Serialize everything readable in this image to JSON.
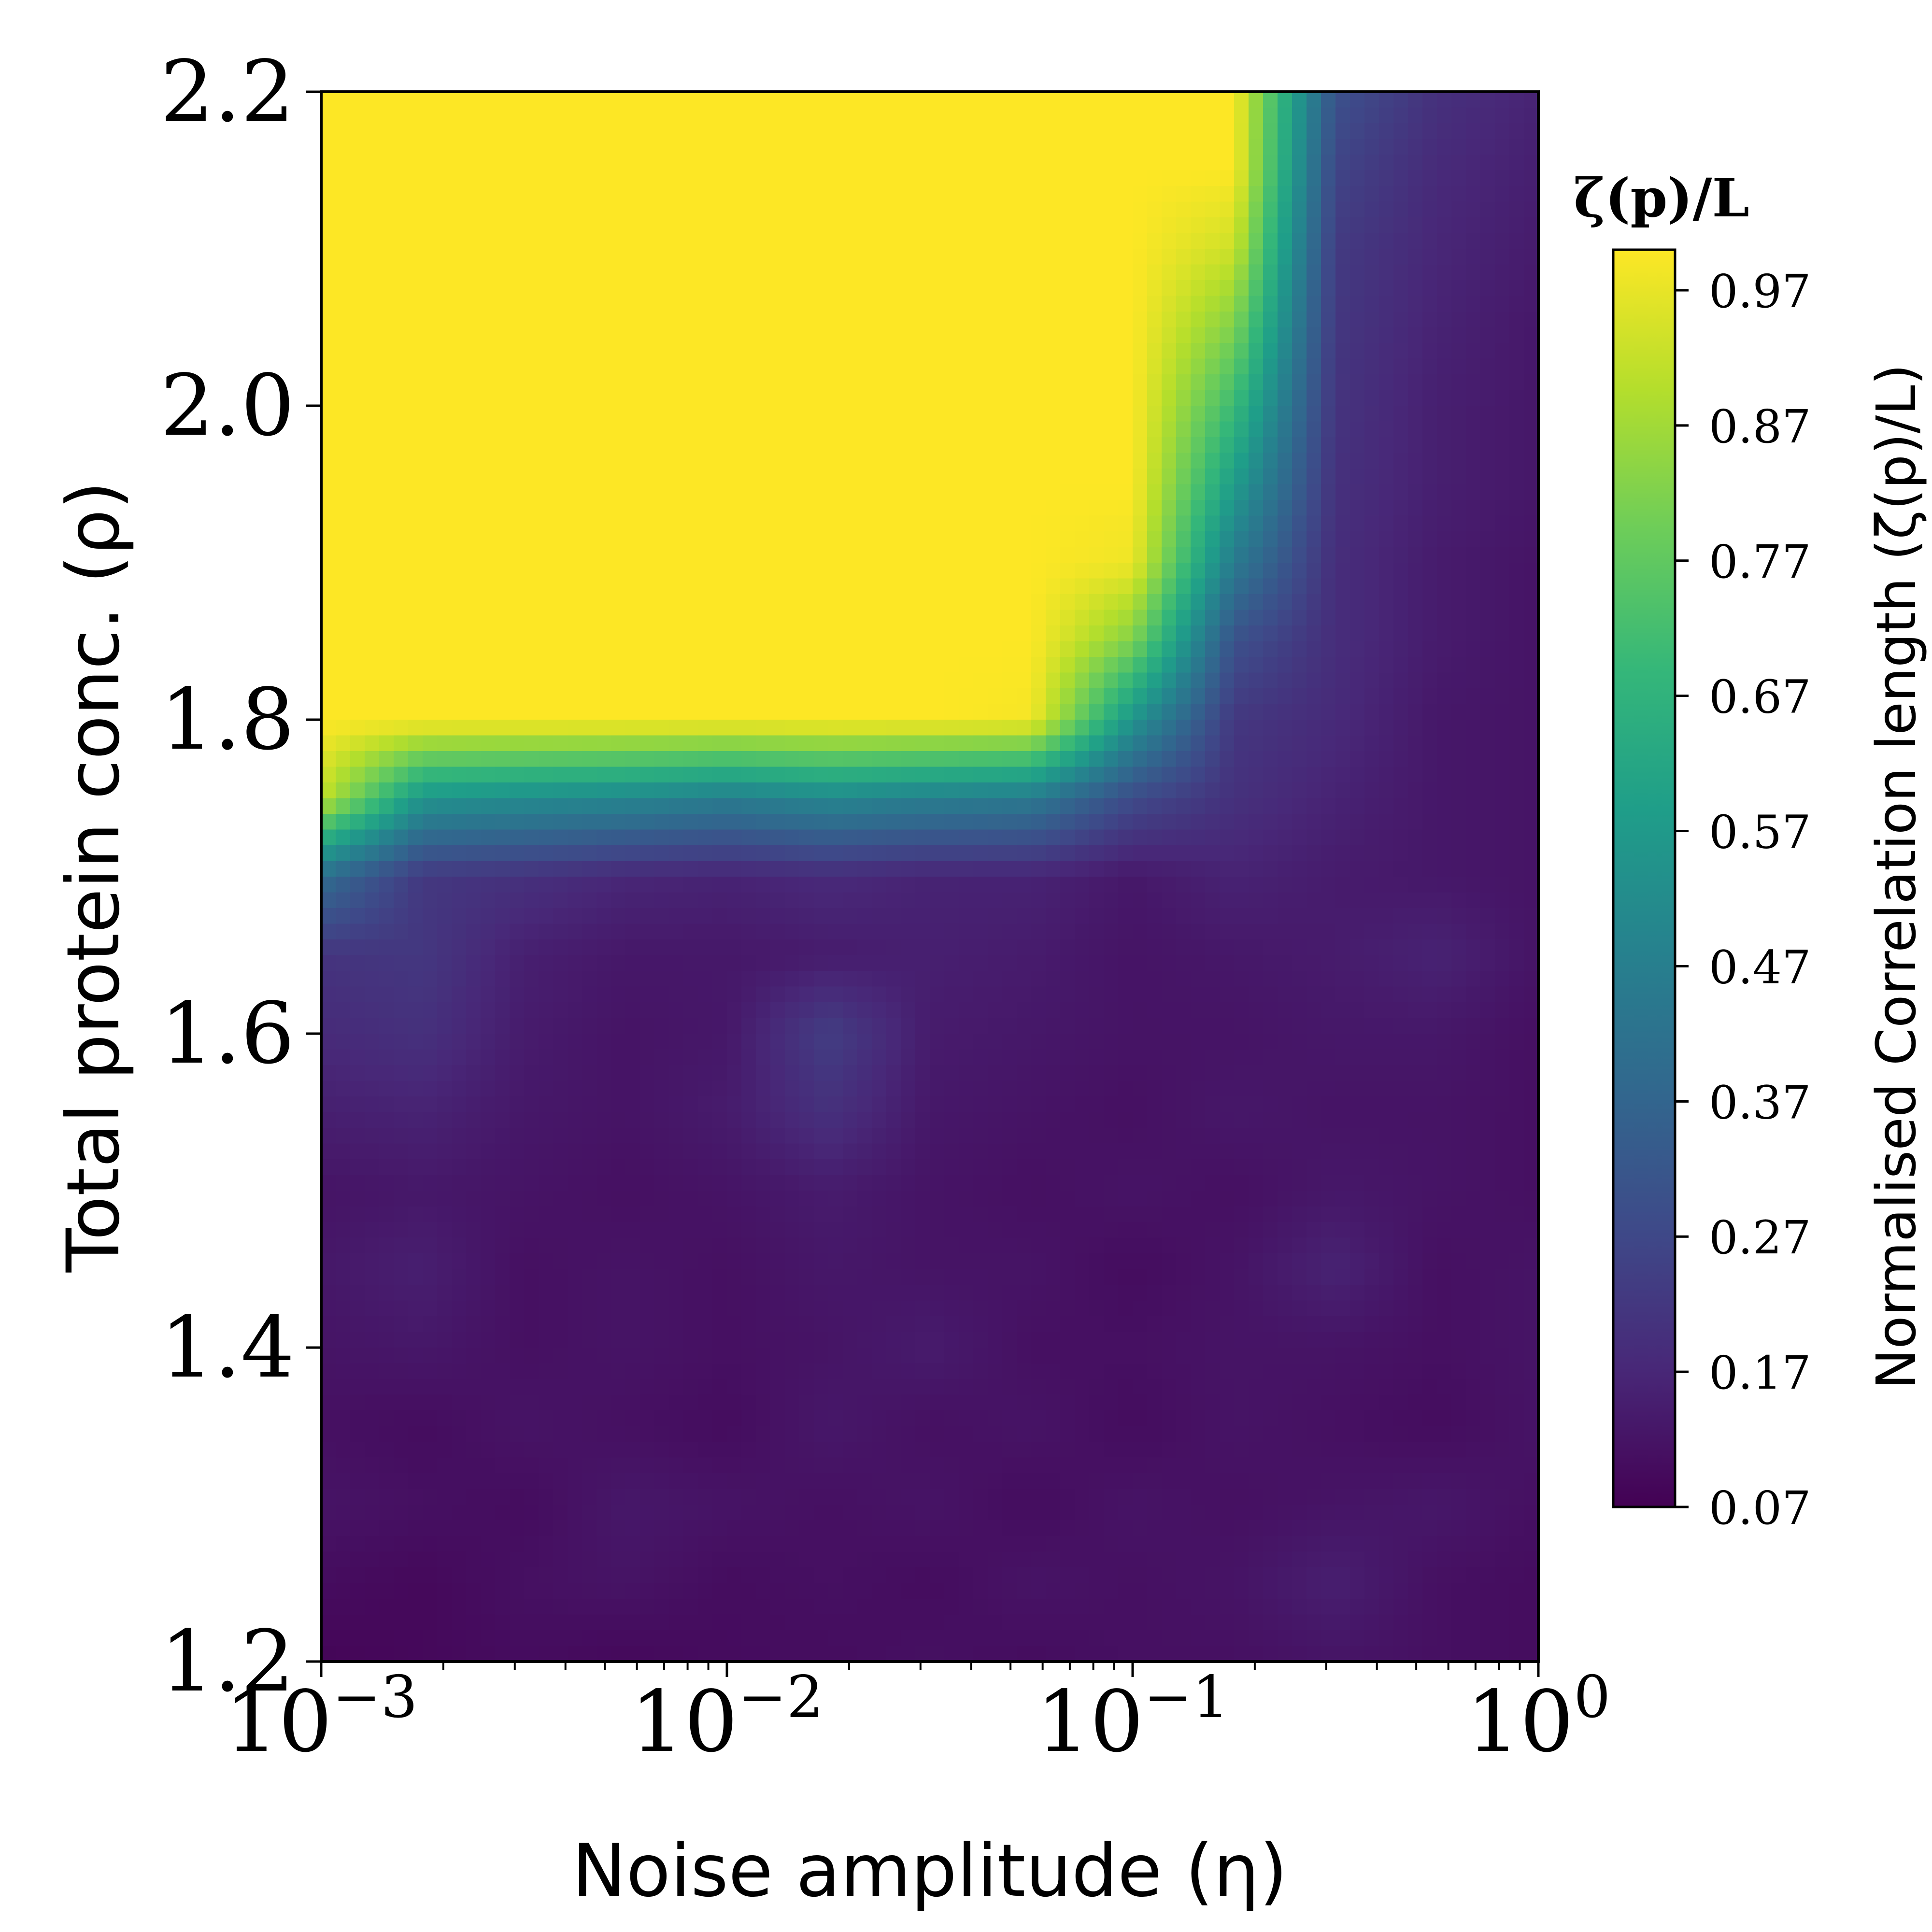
{
  "chart_data": {
    "type": "heatmap",
    "xlabel": "Noise amplitude (η)",
    "ylabel": "Total protein conc. (ρ)",
    "x_scale": "log",
    "xlim": [
      0.001,
      1
    ],
    "ylim": [
      1.2,
      2.2
    ],
    "x_ticks": [
      {
        "value": 0.001,
        "base": "10",
        "exp": "−3"
      },
      {
        "value": 0.01,
        "base": "10",
        "exp": "−2"
      },
      {
        "value": 0.1,
        "base": "10",
        "exp": "−1"
      },
      {
        "value": 1,
        "base": "10",
        "exp": "0"
      }
    ],
    "y_ticks": [
      {
        "value": 1.2,
        "label": "1.2"
      },
      {
        "value": 1.4,
        "label": "1.4"
      },
      {
        "value": 1.6,
        "label": "1.6"
      },
      {
        "value": 1.8,
        "label": "1.8"
      },
      {
        "value": 2.0,
        "label": "2.0"
      },
      {
        "value": 2.2,
        "label": "2.2"
      }
    ],
    "grid": false,
    "colormap": "viridis",
    "colorbar": {
      "title": "ζ(p)/L",
      "label": "Normalised Correlation length (ζ(p)/L)",
      "range": [
        0.07,
        1.0
      ],
      "ticks": [
        {
          "value": 0.07,
          "label": "0.07"
        },
        {
          "value": 0.17,
          "label": "0.17"
        },
        {
          "value": 0.27,
          "label": "0.27"
        },
        {
          "value": 0.37,
          "label": "0.37"
        },
        {
          "value": 0.47,
          "label": "0.47"
        },
        {
          "value": 0.57,
          "label": "0.57"
        },
        {
          "value": 0.67,
          "label": "0.67"
        },
        {
          "value": 0.77,
          "label": "0.77"
        },
        {
          "value": 0.87,
          "label": "0.87"
        },
        {
          "value": 0.97,
          "label": "0.97"
        }
      ]
    },
    "grid_x": [
      0.001,
      0.00178,
      0.00316,
      0.00562,
      0.01,
      0.0178,
      0.0316,
      0.0562,
      0.1,
      0.178,
      0.316,
      0.562,
      1.0
    ],
    "grid_y": [
      1.2,
      1.25,
      1.3,
      1.35,
      1.4,
      1.45,
      1.5,
      1.55,
      1.6,
      1.65,
      1.7,
      1.75,
      1.8,
      1.85,
      1.9,
      1.95,
      2.0,
      2.05,
      2.1,
      2.15,
      2.2
    ],
    "z": [
      [
        0.08,
        0.09,
        0.1,
        0.09,
        0.1,
        0.1,
        0.11,
        0.1,
        0.11,
        0.11,
        0.12,
        0.11,
        0.1
      ],
      [
        0.1,
        0.09,
        0.11,
        0.12,
        0.1,
        0.11,
        0.1,
        0.12,
        0.11,
        0.12,
        0.15,
        0.11,
        0.1
      ],
      [
        0.12,
        0.11,
        0.1,
        0.13,
        0.12,
        0.11,
        0.12,
        0.1,
        0.12,
        0.11,
        0.12,
        0.13,
        0.11
      ],
      [
        0.11,
        0.1,
        0.12,
        0.11,
        0.1,
        0.13,
        0.11,
        0.12,
        0.1,
        0.12,
        0.11,
        0.1,
        0.12
      ],
      [
        0.12,
        0.13,
        0.11,
        0.12,
        0.11,
        0.12,
        0.14,
        0.11,
        0.11,
        0.12,
        0.12,
        0.11,
        0.12
      ],
      [
        0.13,
        0.15,
        0.11,
        0.12,
        0.11,
        0.13,
        0.12,
        0.12,
        0.1,
        0.12,
        0.16,
        0.11,
        0.12
      ],
      [
        0.12,
        0.13,
        0.12,
        0.11,
        0.12,
        0.14,
        0.12,
        0.11,
        0.12,
        0.11,
        0.13,
        0.12,
        0.11
      ],
      [
        0.15,
        0.16,
        0.13,
        0.12,
        0.14,
        0.2,
        0.13,
        0.12,
        0.11,
        0.13,
        0.12,
        0.12,
        0.11
      ],
      [
        0.18,
        0.2,
        0.14,
        0.12,
        0.13,
        0.24,
        0.14,
        0.13,
        0.12,
        0.12,
        0.13,
        0.13,
        0.11
      ],
      [
        0.21,
        0.22,
        0.15,
        0.13,
        0.13,
        0.14,
        0.15,
        0.14,
        0.12,
        0.13,
        0.14,
        0.16,
        0.12
      ],
      [
        0.4,
        0.22,
        0.2,
        0.17,
        0.16,
        0.18,
        0.16,
        0.16,
        0.13,
        0.16,
        0.14,
        0.13,
        0.12
      ],
      [
        0.92,
        0.55,
        0.52,
        0.5,
        0.46,
        0.5,
        0.47,
        0.45,
        0.28,
        0.2,
        0.16,
        0.13,
        0.12
      ],
      [
        1.0,
        1.0,
        1.0,
        1.0,
        1.0,
        1.0,
        1.0,
        0.99,
        0.55,
        0.22,
        0.18,
        0.13,
        0.12
      ],
      [
        1.0,
        1.0,
        1.0,
        1.0,
        1.0,
        1.0,
        1.0,
        1.0,
        0.82,
        0.3,
        0.19,
        0.14,
        0.12
      ],
      [
        1.0,
        1.0,
        1.0,
        1.0,
        1.0,
        1.0,
        1.0,
        1.0,
        0.98,
        0.45,
        0.19,
        0.14,
        0.12
      ],
      [
        1.0,
        1.0,
        1.0,
        1.0,
        1.0,
        1.0,
        1.0,
        1.0,
        1.0,
        0.58,
        0.2,
        0.15,
        0.13
      ],
      [
        1.0,
        1.0,
        1.0,
        1.0,
        1.0,
        1.0,
        1.0,
        1.0,
        1.0,
        0.7,
        0.21,
        0.15,
        0.13
      ],
      [
        1.0,
        1.0,
        1.0,
        1.0,
        1.0,
        1.0,
        1.0,
        1.0,
        1.0,
        0.82,
        0.22,
        0.16,
        0.13
      ],
      [
        1.0,
        1.0,
        1.0,
        1.0,
        1.0,
        1.0,
        1.0,
        1.0,
        1.0,
        0.93,
        0.23,
        0.17,
        0.14
      ],
      [
        1.0,
        1.0,
        1.0,
        1.0,
        1.0,
        1.0,
        1.0,
        1.0,
        1.0,
        1.0,
        0.26,
        0.18,
        0.15
      ],
      [
        1.0,
        1.0,
        1.0,
        1.0,
        1.0,
        1.0,
        1.0,
        1.0,
        1.0,
        1.0,
        0.3,
        0.2,
        0.16
      ]
    ]
  }
}
